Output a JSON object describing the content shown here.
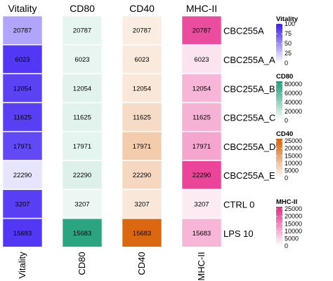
{
  "chart_data": {
    "type": "heatmap",
    "columns": [
      "Vitality",
      "CD80",
      "CD40",
      "MHC-II"
    ],
    "rows": [
      "CBC255A",
      "CBC255A_A",
      "CBC255A_B",
      "CBC255A_C",
      "CBC255A_D",
      "CBC255A_E",
      "CTRL 0",
      "LPS 10"
    ],
    "cell_labels": [
      [
        "20787",
        "20787",
        "20787",
        "20787"
      ],
      [
        "6023",
        "6023",
        "6023",
        "6023"
      ],
      [
        "12054",
        "12054",
        "12054",
        "12054"
      ],
      [
        "11625",
        "11625",
        "11625",
        "11625"
      ],
      [
        "17971",
        "17971",
        "17971",
        "17971"
      ],
      [
        "22290",
        "22290",
        "22290",
        "22290"
      ],
      [
        "3207",
        "3207",
        "3207",
        "3207"
      ],
      [
        "15683",
        "15683",
        "15683",
        "15683"
      ]
    ],
    "fill_values": {
      "Vitality": [
        40,
        88,
        83,
        85,
        80,
        12,
        85,
        88
      ],
      "CD80": [
        9000,
        8800,
        11000,
        11000,
        10000,
        13000,
        7000,
        80000
      ],
      "CD40": [
        3000,
        3500,
        4000,
        6000,
        8500,
        6500,
        4000,
        25000
      ],
      "MHC-II": [
        22000,
        3500,
        9000,
        9500,
        11000,
        23000,
        2500,
        9000
      ]
    },
    "legends": [
      {
        "title": "Vitality",
        "ticks": [
          0,
          25,
          50,
          75,
          100
        ],
        "min": 0,
        "max": 100,
        "low_color": "#ffffff",
        "high_color": "#3a1df2"
      },
      {
        "title": "CD80",
        "ticks": [
          0,
          20000,
          40000,
          60000,
          80000
        ],
        "min": 0,
        "max": 86000,
        "low_color": "#ffffff",
        "high_color": "#1b9e77"
      },
      {
        "title": "CD40",
        "ticks": [
          0,
          5000,
          10000,
          15000,
          20000,
          25000
        ],
        "min": 0,
        "max": 26500,
        "low_color": "#ffffff",
        "high_color": "#d95f02"
      },
      {
        "title": "MHC-II",
        "ticks": [
          0,
          5000,
          10000,
          15000,
          20000,
          25000
        ],
        "min": 0,
        "max": 26500,
        "low_color": "#ffffff",
        "high_color": "#e7298a"
      }
    ]
  }
}
